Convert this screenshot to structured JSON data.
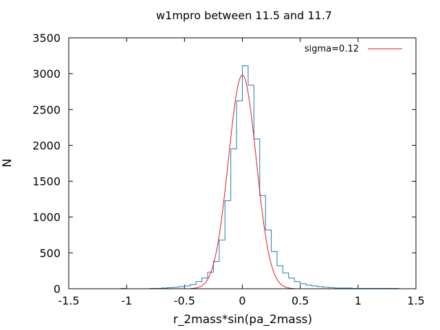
{
  "chart_data": {
    "type": "line",
    "title": "w1mpro between 11.5 and 11.7",
    "xlabel": "r_2mass*sin(pa_2mass)",
    "ylabel": "N",
    "xlim": [
      -1.5,
      1.5
    ],
    "ylim": [
      0,
      3500
    ],
    "x_ticks": [
      -1.5,
      -1,
      -0.5,
      0,
      0.5,
      1,
      1.5
    ],
    "x_tick_labels": [
      "-1.5",
      "-1",
      "-0.5",
      "0",
      "0.5",
      "1",
      "1.5"
    ],
    "y_ticks": [
      0,
      500,
      1000,
      1500,
      2000,
      2500,
      3000,
      3500
    ],
    "y_tick_labels": [
      "0",
      "500",
      "1000",
      "1500",
      "2000",
      "2500",
      "3000",
      "3500"
    ],
    "grid": false,
    "legend_position": "top-right",
    "series": [
      {
        "name": "",
        "style": "histogram-steps",
        "color": "#1f77b4",
        "bin_edges": [
          -1.05,
          -1.0,
          -0.95,
          -0.9,
          -0.85,
          -0.8,
          -0.75,
          -0.7,
          -0.65,
          -0.6,
          -0.55,
          -0.5,
          -0.45,
          -0.4,
          -0.35,
          -0.3,
          -0.25,
          -0.2,
          -0.15,
          -0.1,
          -0.05,
          0.0,
          0.05,
          0.1,
          0.15,
          0.2,
          0.25,
          0.3,
          0.35,
          0.4,
          0.45,
          0.5,
          0.55,
          0.6,
          0.65,
          0.7,
          0.75,
          0.8,
          0.85,
          0.9,
          0.95,
          1.0,
          1.05,
          1.1,
          1.15,
          1.2,
          1.25,
          1.3,
          1.35
        ],
        "counts": [
          5,
          0,
          0,
          0,
          0,
          5,
          5,
          10,
          15,
          20,
          30,
          40,
          60,
          100,
          150,
          230,
          380,
          680,
          1230,
          1950,
          2620,
          3110,
          2840,
          2090,
          1300,
          820,
          520,
          320,
          220,
          150,
          100,
          70,
          50,
          40,
          30,
          20,
          15,
          10,
          10,
          10,
          5,
          5,
          5,
          5,
          5,
          5,
          5,
          5
        ]
      },
      {
        "name": "sigma=0.12",
        "style": "line",
        "color": "#e8131b",
        "function": "gaussian",
        "amplitude": 2980,
        "mean": 0.0,
        "sigma": 0.12,
        "x_range": [
          -0.45,
          0.45
        ]
      }
    ]
  }
}
